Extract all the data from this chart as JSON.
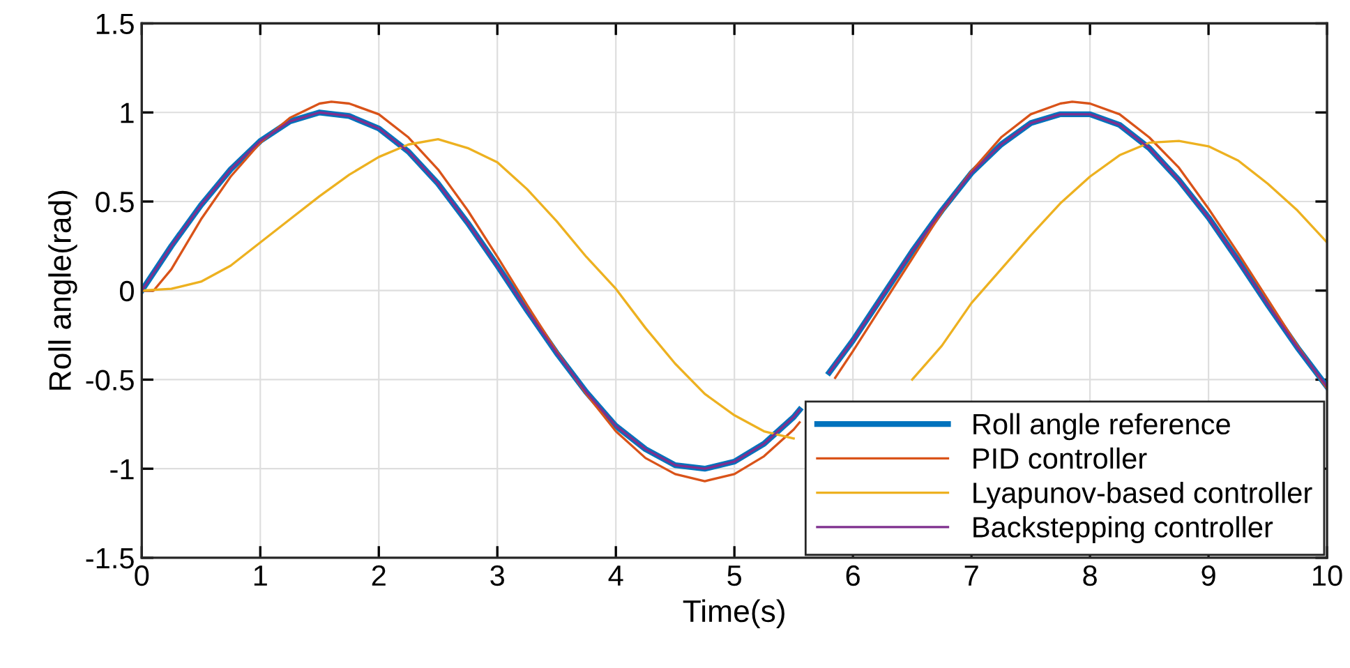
{
  "chart_data": {
    "type": "line",
    "xlabel": "Time(s)",
    "ylabel": "Roll angle(rad)",
    "xlim": [
      0,
      10
    ],
    "xticks": [
      0,
      1,
      2,
      3,
      4,
      5,
      6,
      7,
      8,
      9,
      10
    ],
    "ylim": [
      -1.5,
      1.5
    ],
    "yticks": [
      -1.5,
      -1,
      -0.5,
      0,
      0.5,
      1,
      1.5
    ],
    "grid": true,
    "legend": "bottom right",
    "marker": "none",
    "line_style": "solid",
    "series": [
      {
        "name": "Roll angle reference",
        "color": "#0072bd",
        "x": [
          0,
          0.25,
          0.5,
          0.75,
          1,
          1.25,
          1.5,
          1.75,
          2,
          2.25,
          2.5,
          2.75,
          3,
          3.25,
          3.5,
          3.75,
          4,
          4.25,
          4.5,
          4.75,
          5,
          5.25,
          5.5,
          5.55,
          5.75,
          5.8,
          6,
          6.25,
          6.5,
          6.75,
          7,
          7.25,
          7.5,
          7.75,
          8,
          8.25,
          8.5,
          8.75,
          9,
          9.25,
          9.5,
          9.75,
          10
        ],
        "values": [
          0,
          0.25,
          0.48,
          0.68,
          0.84,
          0.95,
          1.0,
          0.98,
          0.91,
          0.78,
          0.6,
          0.38,
          0.14,
          -0.11,
          -0.35,
          -0.57,
          -0.76,
          -0.89,
          -0.98,
          -1.0,
          -0.96,
          -0.86,
          -0.71,
          -0.67,
          null,
          -0.46,
          -0.28,
          -0.03,
          0.22,
          0.45,
          0.66,
          0.82,
          0.94,
          0.99,
          0.99,
          0.93,
          0.8,
          0.62,
          0.41,
          0.17,
          -0.08,
          -0.32,
          -0.54
        ]
      },
      {
        "name": "PID controller",
        "color": "#d95319",
        "x": [
          0,
          0.1,
          0.25,
          0.5,
          0.75,
          1,
          1.25,
          1.5,
          1.6,
          1.75,
          2,
          2.25,
          2.5,
          2.75,
          3,
          3.25,
          3.5,
          3.75,
          4,
          4.25,
          4.5,
          4.75,
          5,
          5.25,
          5.5,
          5.55,
          5.75,
          5.85,
          6,
          6.25,
          6.5,
          6.75,
          7,
          7.25,
          7.5,
          7.75,
          7.85,
          8,
          8.25,
          8.5,
          8.75,
          9,
          9.25,
          9.5,
          9.75,
          10
        ],
        "values": [
          0,
          0,
          0.12,
          0.4,
          0.64,
          0.83,
          0.97,
          1.05,
          1.06,
          1.05,
          0.99,
          0.86,
          0.68,
          0.45,
          0.19,
          -0.08,
          -0.34,
          -0.58,
          -0.79,
          -0.94,
          -1.03,
          -1.07,
          -1.03,
          -0.93,
          -0.78,
          -0.74,
          null,
          -0.49,
          -0.34,
          -0.08,
          0.18,
          0.44,
          0.67,
          0.86,
          0.99,
          1.05,
          1.06,
          1.05,
          0.99,
          0.86,
          0.69,
          0.46,
          0.21,
          -0.05,
          -0.31,
          -0.55
        ]
      },
      {
        "name": "Lyapunov-based controller",
        "color": "#edb120",
        "x": [
          0,
          0.25,
          0.5,
          0.75,
          1,
          1.25,
          1.5,
          1.75,
          2,
          2.25,
          2.5,
          2.75,
          3,
          3.25,
          3.5,
          3.75,
          4,
          4.25,
          4.5,
          4.75,
          5,
          5.25,
          5.5,
          5.75,
          6,
          6.25,
          6.5,
          6.75,
          7,
          7.25,
          7.5,
          7.75,
          8,
          8.25,
          8.5,
          8.75,
          9,
          9.25,
          9.5,
          9.75,
          10
        ],
        "values": [
          0,
          0.01,
          0.05,
          0.14,
          0.27,
          0.4,
          0.53,
          0.65,
          0.75,
          0.82,
          0.85,
          0.8,
          0.72,
          0.57,
          0.39,
          0.19,
          0.01,
          -0.21,
          -0.41,
          -0.58,
          -0.7,
          -0.79,
          -0.83,
          null,
          null,
          null,
          -0.5,
          -0.31,
          -0.07,
          0.12,
          0.31,
          0.49,
          0.64,
          0.76,
          0.83,
          0.84,
          0.81,
          0.73,
          0.6,
          0.45,
          0.27
        ]
      },
      {
        "name": "Backstepping controller",
        "color": "#7e2f8e",
        "x": [
          0,
          0.25,
          0.5,
          0.75,
          1,
          1.25,
          1.5,
          1.75,
          2,
          2.25,
          2.5,
          2.75,
          3,
          3.25,
          3.5,
          3.75,
          4,
          4.25,
          4.5,
          4.75,
          5,
          5.25,
          5.5,
          5.55,
          5.75,
          5.8,
          6,
          6.25,
          6.5,
          6.75,
          7,
          7.25,
          7.5,
          7.75,
          8,
          8.25,
          8.5,
          8.75,
          9,
          9.25,
          9.5,
          9.75,
          10
        ],
        "values": [
          0,
          0.25,
          0.48,
          0.68,
          0.84,
          0.95,
          1.0,
          0.98,
          0.91,
          0.78,
          0.6,
          0.38,
          0.14,
          -0.11,
          -0.35,
          -0.57,
          -0.76,
          -0.89,
          -0.98,
          -1.0,
          -0.96,
          -0.86,
          -0.71,
          -0.67,
          null,
          -0.46,
          -0.28,
          -0.03,
          0.22,
          0.45,
          0.66,
          0.82,
          0.94,
          0.99,
          0.99,
          0.93,
          0.8,
          0.62,
          0.41,
          0.17,
          -0.08,
          -0.32,
          -0.54
        ]
      }
    ]
  }
}
